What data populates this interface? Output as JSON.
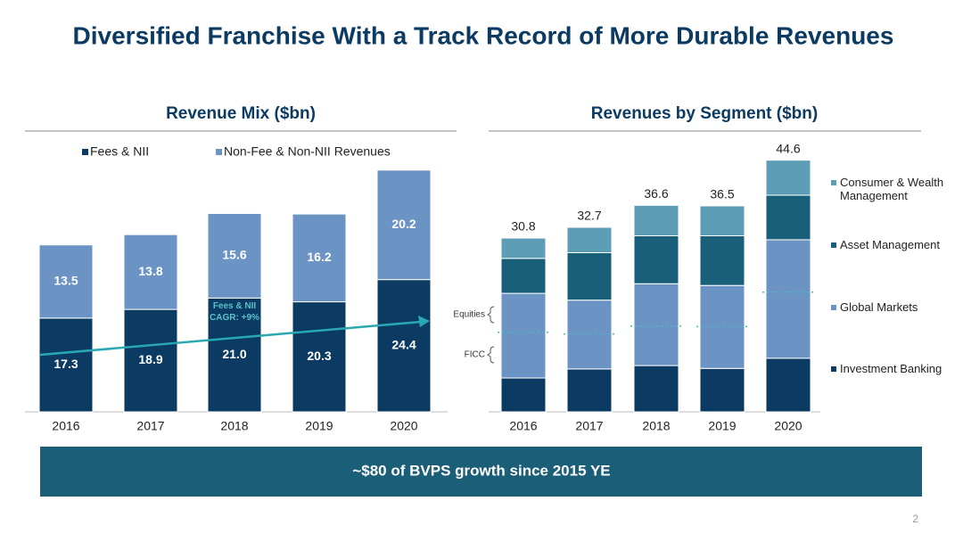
{
  "title": "Diversified Franchise With a Track Record of More Durable Revenues",
  "chart_data": [
    {
      "type": "bar",
      "stacked": true,
      "title": "Revenue Mix ($bn)",
      "categories": [
        "2016",
        "2017",
        "2018",
        "2019",
        "2020"
      ],
      "series": [
        {
          "name": "Fees & NII",
          "color": "#0b3a63",
          "values": [
            17.3,
            18.9,
            21.0,
            20.3,
            24.4
          ],
          "value_labels": [
            "17.3",
            "18.9",
            "21.0",
            "20.3",
            "24.4"
          ]
        },
        {
          "name": "Non-Fee & Non-NII Revenues",
          "color": "#6b93c3",
          "values": [
            13.5,
            13.8,
            15.6,
            16.2,
            20.2
          ],
          "value_labels": [
            "13.5",
            "13.8",
            "15.6",
            "16.2",
            "20.2"
          ]
        }
      ],
      "annotation": "Fees & NII CAGR: +9%",
      "trend_color": "#2aa8b2"
    },
    {
      "type": "bar",
      "stacked": true,
      "title": "Revenues by Segment ($bn)",
      "categories": [
        "2016",
        "2017",
        "2018",
        "2019",
        "2020"
      ],
      "series": [
        {
          "name": "Investment Banking",
          "color": "#0b3a63",
          "values": [
            6.0,
            7.6,
            8.2,
            7.7,
            9.5
          ]
        },
        {
          "name": "Global Markets",
          "color": "#6b93c3",
          "values": [
            15.0,
            12.2,
            14.5,
            14.7,
            21.0
          ]
        },
        {
          "name": "Asset Management",
          "color": "#1a5f7a",
          "values": [
            6.2,
            8.4,
            8.5,
            8.8,
            7.9
          ]
        },
        {
          "name": "Consumer & Wealth Management",
          "color": "#5d9db6",
          "values": [
            3.6,
            4.5,
            5.4,
            5.3,
            6.2
          ]
        }
      ],
      "totals": [
        30.8,
        32.7,
        36.6,
        36.5,
        44.6
      ],
      "ficc_values": [
        8.1,
        6.2,
        7.0,
        7.4,
        11.7
      ],
      "equities_label": "Equities",
      "ficc_label": "FICC"
    }
  ],
  "banner": "~$80 of BVPS growth since 2015 YE",
  "page_number": "2"
}
